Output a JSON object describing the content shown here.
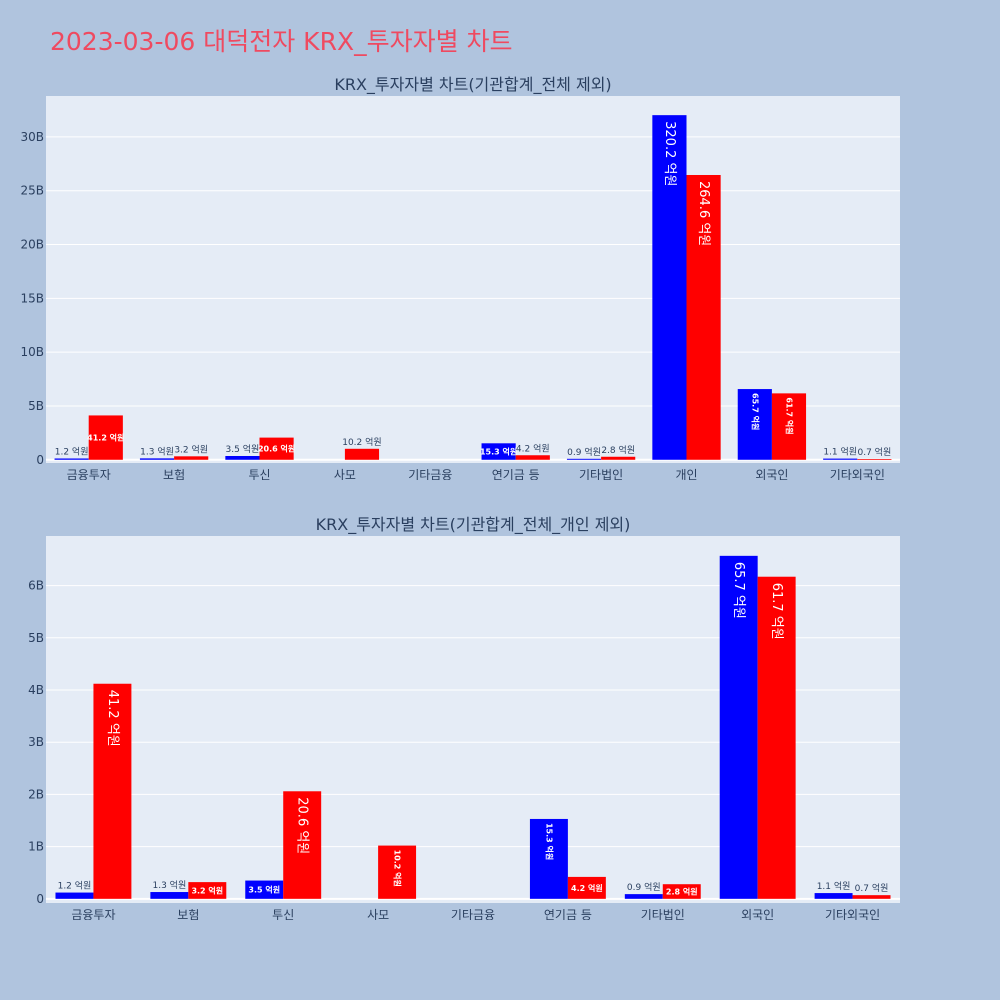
{
  "page": {
    "title": "2023-03-06 대덕전자 KRX_투자자별 차트",
    "title_color": "#ef4a60",
    "background": "#b0c4de",
    "plot_background": "#e5ecf6",
    "series_colors": [
      "#0000ff",
      "#ff0000"
    ]
  },
  "chart_data": [
    {
      "type": "bar",
      "title": "KRX_투자자별 차트(기관합계_전체 제외)",
      "categories": [
        "금융투자",
        "보험",
        "투신",
        "사모",
        "기타금융",
        "연기금 등",
        "기타법인",
        "개인",
        "외국인",
        "기타외국인"
      ],
      "series": [
        {
          "values": [
            120000000,
            130000000,
            350000000,
            0,
            0,
            1530000000,
            90000000,
            32020000000,
            6570000000,
            110000000
          ],
          "labels": [
            "1.2 억원",
            "1.3 억원",
            "3.5 억원",
            "",
            "",
            "15.3 억원",
            "0.9 억원",
            "320.2 억원",
            "65.7 억원",
            "1.1 억원"
          ]
        },
        {
          "values": [
            4120000000,
            320000000,
            2060000000,
            1020000000,
            0,
            420000000,
            280000000,
            26460000000,
            6170000000,
            70000000
          ],
          "labels": [
            "41.2 억원",
            "3.2 억원",
            "20.6 억원",
            "10.2 억원",
            "",
            "4.2 억원",
            "2.8 억원",
            "264.6 억원",
            "61.7 억원",
            "0.7 억원"
          ]
        }
      ],
      "ylim": [
        -300000000,
        33800000000
      ],
      "yticks": [
        0,
        5000000000,
        10000000000,
        15000000000,
        20000000000,
        25000000000,
        30000000000
      ],
      "ytick_labels": [
        "0",
        "5B",
        "10B",
        "15B",
        "20B",
        "25B",
        "30B"
      ],
      "grid": true,
      "xlabel": "",
      "ylabel": ""
    },
    {
      "type": "bar",
      "title": "KRX_투자자별 차트(기관합계_전체_개인 제외)",
      "categories": [
        "금융투자",
        "보험",
        "투신",
        "사모",
        "기타금융",
        "연기금 등",
        "기타법인",
        "외국인",
        "기타외국인"
      ],
      "series": [
        {
          "values": [
            120000000,
            130000000,
            350000000,
            0,
            0,
            1530000000,
            90000000,
            6570000000,
            110000000
          ],
          "labels": [
            "1.2 억원",
            "1.3 억원",
            "3.5 억원",
            "",
            "",
            "15.3 억원",
            "0.9 억원",
            "65.7 억원",
            "1.1 억원"
          ]
        },
        {
          "values": [
            4120000000,
            320000000,
            2060000000,
            1020000000,
            0,
            420000000,
            280000000,
            6170000000,
            70000000
          ],
          "labels": [
            "41.2 억원",
            "3.2 억원",
            "20.6 억원",
            "10.2 억원",
            "",
            "4.2 억원",
            "2.8 억원",
            "61.7 억원",
            "0.7 억원"
          ]
        }
      ],
      "ylim": [
        -80000000,
        6950000000
      ],
      "yticks": [
        0,
        1000000000,
        2000000000,
        3000000000,
        4000000000,
        5000000000,
        6000000000
      ],
      "ytick_labels": [
        "0",
        "1B",
        "2B",
        "3B",
        "4B",
        "5B",
        "6B"
      ],
      "grid": true,
      "xlabel": "",
      "ylabel": ""
    }
  ]
}
